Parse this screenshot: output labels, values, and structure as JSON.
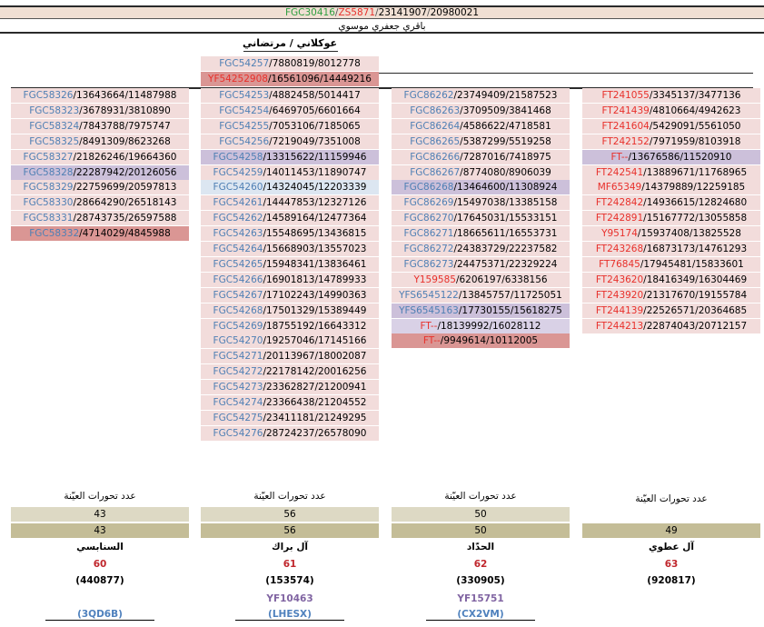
{
  "header": {
    "top_line": [
      {
        "text": "FGC30416",
        "color": "g"
      },
      {
        "text": "ZS5871",
        "color": "r"
      },
      {
        "text": "23141907",
        "color": "k"
      },
      {
        "text": "20980021",
        "color": "k"
      }
    ],
    "title": "باقري جعفري موسوي"
  },
  "clade_label": "عوكلاني / مرتضاني",
  "shared_rows": [
    {
      "snp": "FGC54257",
      "snp_color": "b",
      "p1": "7880819",
      "p2": "8012778",
      "bg": "bg-pink"
    },
    {
      "snp": "YF54252908",
      "snp_color": "r",
      "p1": "16561096",
      "p2": "14449216",
      "bg": "bg-red"
    }
  ],
  "columns": [
    {
      "id": "col4",
      "rows": [
        {
          "snp": "FGC58326",
          "snp_color": "b",
          "p1": "13643664",
          "p2": "11487988",
          "bg": "bg-pink"
        },
        {
          "snp": "FGC58323",
          "snp_color": "b",
          "p1": "3678931",
          "p2": "3810890",
          "bg": "bg-pink"
        },
        {
          "snp": "FGC58324",
          "snp_color": "b",
          "p1": "7843788",
          "p2": "7975747",
          "bg": "bg-pink"
        },
        {
          "snp": "FGC58325",
          "snp_color": "b",
          "p1": "8491309",
          "p2": "8623268",
          "bg": "bg-pink"
        },
        {
          "snp": "FGC58327",
          "snp_color": "b",
          "p1": "21826246",
          "p2": "19664360",
          "bg": "bg-pink"
        },
        {
          "snp": "FGC58328",
          "snp_color": "b",
          "p1": "22287942",
          "p2": "20126056",
          "bg": "bg-lav"
        },
        {
          "snp": "FGC58329",
          "snp_color": "b",
          "p1": "22759699",
          "p2": "20597813",
          "bg": "bg-pink"
        },
        {
          "snp": "FGC58330",
          "snp_color": "b",
          "p1": "28664290",
          "p2": "26518143",
          "bg": "bg-pink"
        },
        {
          "snp": "FGC58331",
          "snp_color": "b",
          "p1": "28743735",
          "p2": "26597588",
          "bg": "bg-pink"
        },
        {
          "snp": "FGC58332",
          "snp_color": "b",
          "p1": "4714029",
          "p2": "4845988",
          "bg": "bg-red"
        }
      ],
      "count_label": "عدد تحورات العيّنة",
      "count1": "43",
      "count2": "43",
      "family": "السنابسي",
      "age": "60",
      "kit": "(440877)",
      "haplo": "",
      "code": "3QD6B"
    },
    {
      "id": "col3",
      "rows": [
        {
          "snp": "FGC54253",
          "snp_color": "b",
          "p1": "4882458",
          "p2": "5014417",
          "bg": "bg-pink"
        },
        {
          "snp": "FGC54254",
          "snp_color": "b",
          "p1": "6469705",
          "p2": "6601664",
          "bg": "bg-pink"
        },
        {
          "snp": "FGC54255",
          "snp_color": "b",
          "p1": "7053106",
          "p2": "7185065",
          "bg": "bg-pink"
        },
        {
          "snp": "FGC54256",
          "snp_color": "b",
          "p1": "7219049",
          "p2": "7351008",
          "bg": "bg-pink"
        },
        {
          "snp": "FGC54258",
          "snp_color": "b",
          "p1": "13315622",
          "p2": "11159946",
          "bg": "bg-lav"
        },
        {
          "snp": "FGC54259",
          "snp_color": "b",
          "p1": "14011453",
          "p2": "11890747",
          "bg": "bg-pink"
        },
        {
          "snp": "FGC54260",
          "snp_color": "b",
          "p1": "14324045",
          "p2": "12203339",
          "bg": "bg-blue"
        },
        {
          "snp": "FGC54261",
          "snp_color": "b",
          "p1": "14447853",
          "p2": "12327126",
          "bg": "bg-pink"
        },
        {
          "snp": "FGC54262",
          "snp_color": "b",
          "p1": "14589164",
          "p2": "12477364",
          "bg": "bg-pink"
        },
        {
          "snp": "FGC54263",
          "snp_color": "b",
          "p1": "15548695",
          "p2": "13436815",
          "bg": "bg-pink"
        },
        {
          "snp": "FGC54264",
          "snp_color": "b",
          "p1": "15668903",
          "p2": "13557023",
          "bg": "bg-pink"
        },
        {
          "snp": "FGC54265",
          "snp_color": "b",
          "p1": "15948341",
          "p2": "13836461",
          "bg": "bg-pink"
        },
        {
          "snp": "FGC54266",
          "snp_color": "b",
          "p1": "16901813",
          "p2": "14789933",
          "bg": "bg-pink"
        },
        {
          "snp": "FGC54267",
          "snp_color": "b",
          "p1": "17102243",
          "p2": "14990363",
          "bg": "bg-pink"
        },
        {
          "snp": "FGC54268",
          "snp_color": "b",
          "p1": "17501329",
          "p2": "15389449",
          "bg": "bg-pink"
        },
        {
          "snp": "FGC54269",
          "snp_color": "b",
          "p1": "18755192",
          "p2": "16643312",
          "bg": "bg-pink"
        },
        {
          "snp": "FGC54270",
          "snp_color": "b",
          "p1": "19257046",
          "p2": "17145166",
          "bg": "bg-pink"
        },
        {
          "snp": "FGC54271",
          "snp_color": "b",
          "p1": "20113967",
          "p2": "18002087",
          "bg": "bg-pink"
        },
        {
          "snp": "FGC54272",
          "snp_color": "b",
          "p1": "22178142",
          "p2": "20016256",
          "bg": "bg-pink"
        },
        {
          "snp": "FGC54273",
          "snp_color": "b",
          "p1": "23362827",
          "p2": "21200941",
          "bg": "bg-pink"
        },
        {
          "snp": "FGC54274",
          "snp_color": "b",
          "p1": "23366438",
          "p2": "21204552",
          "bg": "bg-pink"
        },
        {
          "snp": "FGC54275",
          "snp_color": "b",
          "p1": "23411181",
          "p2": "21249295",
          "bg": "bg-pink"
        },
        {
          "snp": "FGC54276",
          "snp_color": "b",
          "p1": "28724237",
          "p2": "26578090",
          "bg": "bg-pink"
        }
      ],
      "count_label": "عدد تحورات العيّنة",
      "count1": "56",
      "count2": "56",
      "family": "آل براك",
      "age": "61",
      "kit": "(153574)",
      "haplo": "YF10463",
      "code": "LHESX"
    },
    {
      "id": "col2",
      "rows": [
        {
          "snp": "FGC86262",
          "snp_color": "b",
          "p1": "23749409",
          "p2": "21587523",
          "bg": "bg-pink"
        },
        {
          "snp": "FGC86263",
          "snp_color": "b",
          "p1": "3709509",
          "p2": "3841468",
          "bg": "bg-pink"
        },
        {
          "snp": "FGC86264",
          "snp_color": "b",
          "p1": "4586622",
          "p2": "4718581",
          "bg": "bg-pink"
        },
        {
          "snp": "FGC86265",
          "snp_color": "b",
          "p1": "5387299",
          "p2": "5519258",
          "bg": "bg-pink"
        },
        {
          "snp": "FGC86266",
          "snp_color": "b",
          "p1": "7287016",
          "p2": "7418975",
          "bg": "bg-pink"
        },
        {
          "snp": "FGC86267",
          "snp_color": "b",
          "p1": "8774080",
          "p2": "8906039",
          "bg": "bg-pink"
        },
        {
          "snp": "FGC86268",
          "snp_color": "b",
          "p1": "13464600",
          "p2": "11308924",
          "bg": "bg-lav"
        },
        {
          "snp": "FGC86269",
          "snp_color": "b",
          "p1": "15497038",
          "p2": "13385158",
          "bg": "bg-pink"
        },
        {
          "snp": "FGC86270",
          "snp_color": "b",
          "p1": "17645031",
          "p2": "15533151",
          "bg": "bg-pink"
        },
        {
          "snp": "FGC86271",
          "snp_color": "b",
          "p1": "18665611",
          "p2": "16553731",
          "bg": "bg-pink"
        },
        {
          "snp": "FGC86272",
          "snp_color": "b",
          "p1": "24383729",
          "p2": "22237582",
          "bg": "bg-pink"
        },
        {
          "snp": "FGC86273",
          "snp_color": "b",
          "p1": "24475371",
          "p2": "22329224",
          "bg": "bg-pink"
        },
        {
          "snp": "Y159585",
          "snp_color": "r",
          "p1": "6206197",
          "p2": "6338156",
          "bg": "bg-pink"
        },
        {
          "snp": "YFS6545122",
          "snp_color": "b",
          "p1": "13845757",
          "p2": "11725051",
          "bg": "bg-pink"
        },
        {
          "snp": "YFS6545163",
          "snp_color": "b",
          "p1": "17730155",
          "p2": "15618275",
          "bg": "bg-lav"
        },
        {
          "snp": "FT--",
          "snp_color": "r",
          "p1": "18139992",
          "p2": "16028112",
          "bg": "bg-lav2"
        },
        {
          "snp": "FT--",
          "snp_color": "r",
          "p1": "9949614",
          "p2": "10112005",
          "bg": "bg-red"
        }
      ],
      "count_label": "عدد تحورات العيّنة",
      "count1": "50",
      "count2": "50",
      "family": "الحدّاد",
      "age": "62",
      "kit": "(330905)",
      "haplo": "YF15751",
      "code": "CX2VM"
    },
    {
      "id": "col1",
      "rows": [
        {
          "snp": "FT241055",
          "snp_color": "r",
          "p1": "3345137",
          "p2": "3477136",
          "bg": "bg-pink"
        },
        {
          "snp": "FT241439",
          "snp_color": "r",
          "p1": "4810664",
          "p2": "4942623",
          "bg": "bg-pink"
        },
        {
          "snp": "FT241604",
          "snp_color": "r",
          "p1": "5429091",
          "p2": "5561050",
          "bg": "bg-pink"
        },
        {
          "snp": "FT242152",
          "snp_color": "r",
          "p1": "7971959",
          "p2": "8103918",
          "bg": "bg-pink"
        },
        {
          "snp": "FT--",
          "snp_color": "r",
          "p1": "13676586",
          "p2": "11520910",
          "bg": "bg-lav"
        },
        {
          "snp": "FT242541",
          "snp_color": "r",
          "p1": "13889671",
          "p2": "11768965",
          "bg": "bg-pink"
        },
        {
          "snp": "MF65349",
          "snp_color": "r",
          "p1": "14379889",
          "p2": "12259185",
          "bg": "bg-pink"
        },
        {
          "snp": "FT242842",
          "snp_color": "r",
          "p1": "14936615",
          "p2": "12824680",
          "bg": "bg-pink"
        },
        {
          "snp": "FT242891",
          "snp_color": "r",
          "p1": "15167772",
          "p2": "13055858",
          "bg": "bg-pink"
        },
        {
          "snp": "Y95174",
          "snp_color": "r",
          "p1": "15937408",
          "p2": "13825528",
          "bg": "bg-pink"
        },
        {
          "snp": "FT243268",
          "snp_color": "r",
          "p1": "16873173",
          "p2": "14761293",
          "bg": "bg-pink"
        },
        {
          "snp": "FT76845",
          "snp_color": "r",
          "p1": "17945481",
          "p2": "15833601",
          "bg": "bg-pink"
        },
        {
          "snp": "FT243620",
          "snp_color": "r",
          "p1": "18416349",
          "p2": "16304469",
          "bg": "bg-pink"
        },
        {
          "snp": "FT243920",
          "snp_color": "r",
          "p1": "21317670",
          "p2": "19155784",
          "bg": "bg-pink"
        },
        {
          "snp": "FT244139",
          "snp_color": "r",
          "p1": "22526571",
          "p2": "20364685",
          "bg": "bg-pink"
        },
        {
          "snp": "FT244213",
          "snp_color": "r",
          "p1": "22874043",
          "p2": "20712157",
          "bg": "bg-pink"
        }
      ],
      "count_label": "عدد تحورات العيّنة",
      "count1": "",
      "count2": "49",
      "family": "آل عطوي",
      "age": "63",
      "kit": "(920817)",
      "haplo": "",
      "code": ""
    }
  ]
}
